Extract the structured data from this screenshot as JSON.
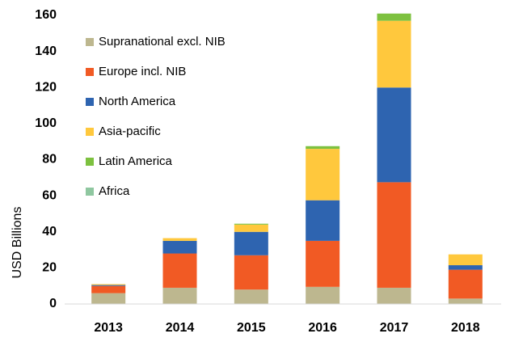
{
  "chart_data": {
    "type": "stacked_bar",
    "y_label": "USD Billions",
    "categories": [
      "2013",
      "2014",
      "2015",
      "2016",
      "2017",
      "2018"
    ],
    "series": [
      {
        "name": "Supranational excl. NIB",
        "color": "#bdb78f",
        "values": [
          6,
          9,
          8,
          9.5,
          9,
          3
        ]
      },
      {
        "name": "Europe incl. NIB",
        "color": "#f15a24",
        "values": [
          4,
          19,
          19,
          25.5,
          58.5,
          16
        ]
      },
      {
        "name": "North America",
        "color": "#2e64b0",
        "values": [
          0.5,
          7,
          13,
          22.5,
          52.5,
          2.5
        ]
      },
      {
        "name": "Asia-pacific",
        "color": "#ffc83d",
        "values": [
          0.5,
          1.5,
          4,
          28.5,
          37,
          6
        ]
      },
      {
        "name": "Latin America",
        "color": "#7dc13f",
        "values": [
          0,
          0,
          0.5,
          1.5,
          4,
          0
        ]
      },
      {
        "name": "Africa",
        "color": "#8fc7a0",
        "values": [
          0,
          0,
          0,
          0,
          0,
          0
        ]
      }
    ],
    "ylim": [
      0,
      160
    ],
    "yticks": [
      0,
      20,
      40,
      60,
      80,
      100,
      120,
      140,
      160
    ],
    "grid": false
  }
}
